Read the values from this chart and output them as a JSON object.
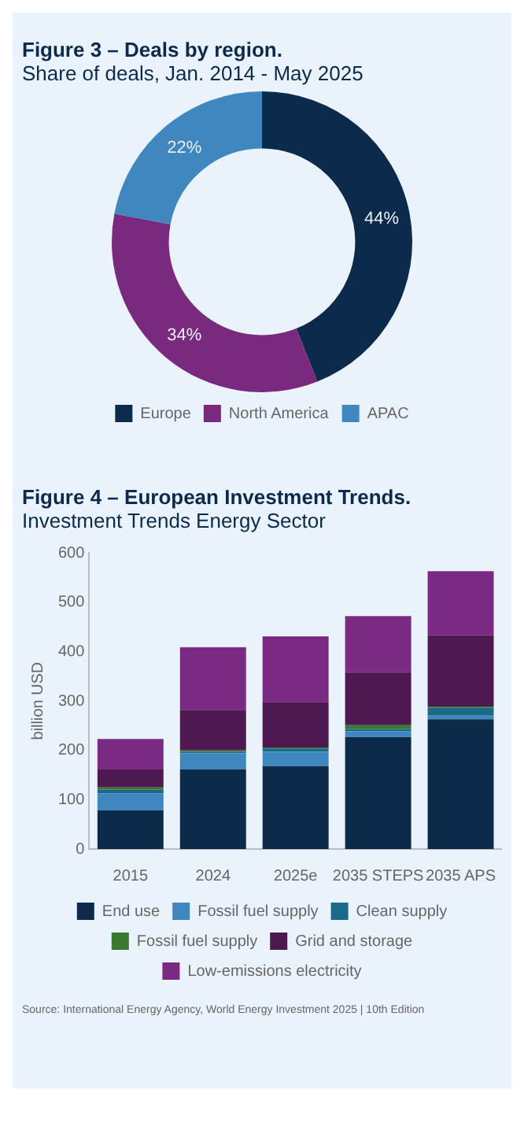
{
  "chart_data": [
    {
      "type": "donut",
      "title": "Figure 3 – Deals by region.",
      "subtitle": "Share of deals, Jan. 2014 - May 2025",
      "categories": [
        "Europe",
        "North America",
        "APAC"
      ],
      "values": [
        44,
        34,
        22
      ],
      "colors": [
        "#0b2a4c",
        "#7a2a7e",
        "#3f87be"
      ],
      "value_labels": [
        "44%",
        "34%",
        "22%"
      ],
      "legend": "bottom"
    },
    {
      "type": "bar",
      "title": "Figure 4 – European Investment Trends.",
      "subtitle": "Investment Trends Energy Sector",
      "ylabel": "billion USD",
      "categories": [
        "2015",
        "2024",
        "2025e",
        "2035 STEPS",
        "2035 APS"
      ],
      "stacked": true,
      "series": [
        {
          "name": "End use",
          "color": "#0c2a4a",
          "values": [
            78,
            161,
            168,
            227,
            263
          ]
        },
        {
          "name": "Fossil fuel supply",
          "color": "#3f87be",
          "values": [
            35,
            33,
            29,
            12,
            7
          ]
        },
        {
          "name": "Clean supply",
          "color": "#1c6a8a",
          "values": [
            7,
            3,
            7,
            4,
            16
          ]
        },
        {
          "name": "Fossil fuel supply",
          "color": "#3a7a2e",
          "values": [
            5,
            3,
            2,
            8,
            3
          ]
        },
        {
          "name": "Grid and storage",
          "color": "#4e1850",
          "values": [
            36,
            82,
            92,
            107,
            144
          ]
        },
        {
          "name": "Low-emissions electricity",
          "color": "#7a2a82",
          "values": [
            62,
            127,
            133,
            114,
            130
          ]
        }
      ],
      "ylim": [
        0,
        600
      ],
      "yticks": [
        0,
        100,
        200,
        300,
        400,
        500,
        600
      ],
      "grid": false,
      "legend": "bottom",
      "annotations": [
        "Source: International Energy Agency, World Energy Investment 2025 | 10th Edition"
      ]
    }
  ]
}
